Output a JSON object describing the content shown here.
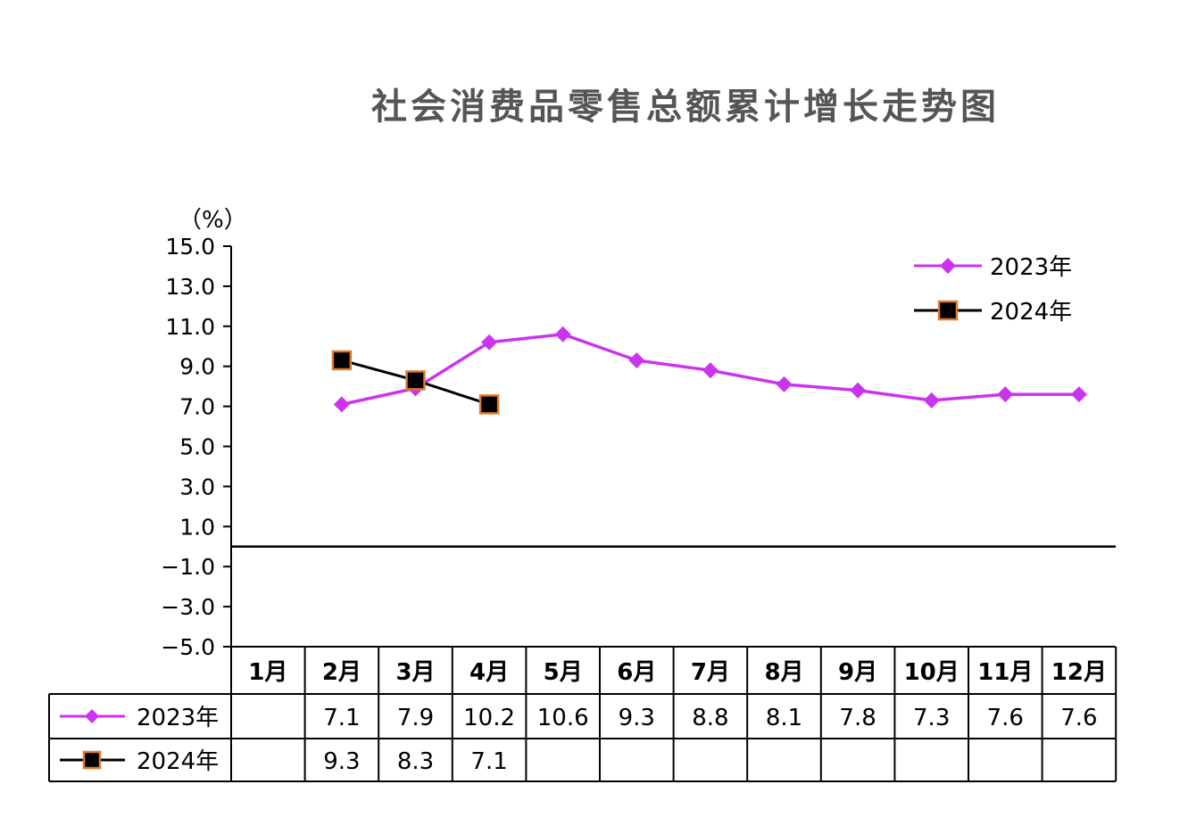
{
  "chart_data": {
    "type": "line",
    "title": "社会消费品零售总额累计增长走势图",
    "unit": "（%）",
    "categories": [
      "1月",
      "2月",
      "3月",
      "4月",
      "5月",
      "6月",
      "7月",
      "8月",
      "9月",
      "10月",
      "11月",
      "12月"
    ],
    "y_ticks": [
      "15.0",
      "13.0",
      "11.0",
      "9.0",
      "7.0",
      "5.0",
      "3.0",
      "1.0",
      "-1.0",
      "-3.0",
      "-5.0"
    ],
    "ylim": [
      -5,
      15
    ],
    "grid": false,
    "legend_position": "top-right",
    "series": [
      {
        "name": "2023年",
        "color": "#cc33ee",
        "marker": "diamond",
        "values": [
          null,
          7.1,
          7.9,
          10.2,
          10.6,
          9.3,
          8.8,
          8.1,
          7.8,
          7.3,
          7.6,
          7.6
        ],
        "labels": [
          "",
          "7.1",
          "7.9",
          "10.2",
          "10.6",
          "9.3",
          "8.8",
          "8.1",
          "7.8",
          "7.3",
          "7.6",
          "7.6"
        ]
      },
      {
        "name": "2024年",
        "color": "#000000",
        "marker_edge": "#e07a2a",
        "marker": "square",
        "values": [
          null,
          9.3,
          8.3,
          7.1,
          null,
          null,
          null,
          null,
          null,
          null,
          null,
          null
        ],
        "labels": [
          "",
          "9.3",
          "8.3",
          "7.1",
          "",
          "",
          "",
          "",
          "",
          "",
          "",
          ""
        ]
      }
    ]
  }
}
